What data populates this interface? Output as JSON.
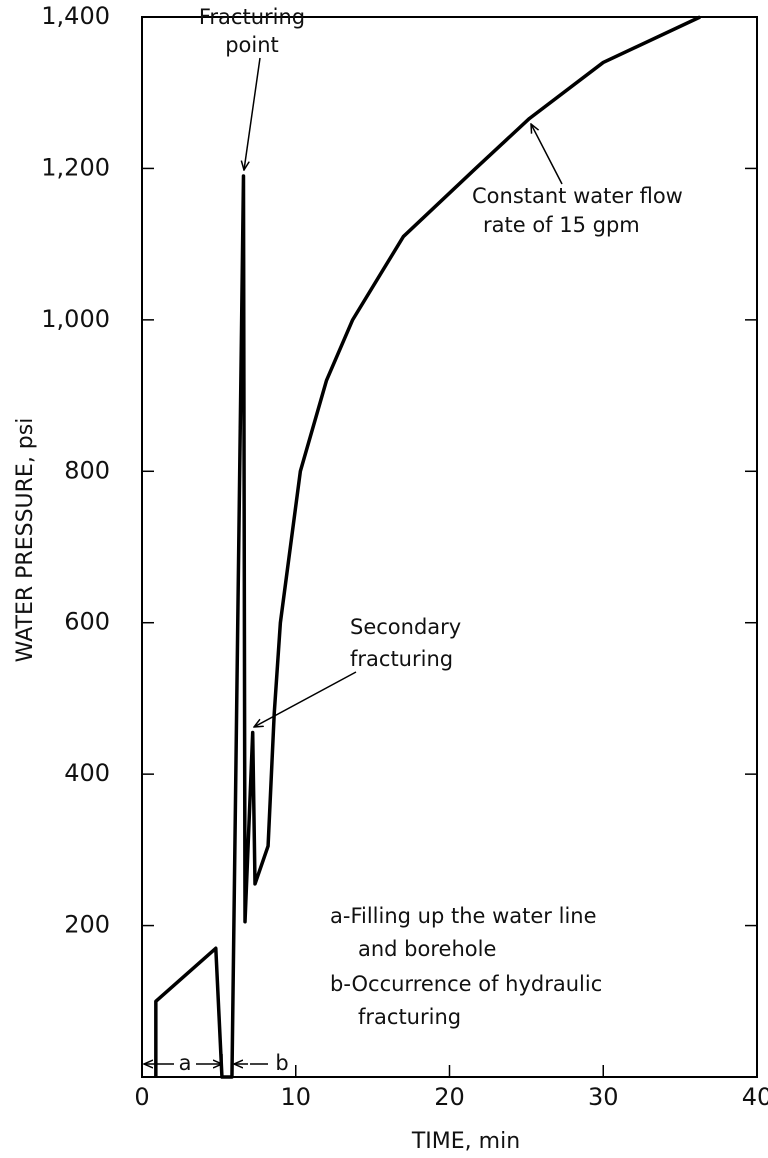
{
  "chart_data": {
    "type": "line",
    "xlabel": "TIME, min",
    "ylabel": "WATER PRESSURE, psi",
    "x": [
      0.9,
      0.9,
      4.8,
      5.2,
      5.85,
      6.6,
      6.7,
      7.2,
      7.35,
      8.2,
      8.6,
      9.0,
      10.3,
      12,
      13.7,
      17,
      21.7,
      25.2,
      30,
      36.3
    ],
    "series": [
      {
        "color": "#000000",
        "values": [
          0,
          100,
          170,
          0,
          0,
          1190,
          205,
          455,
          255,
          305,
          480,
          600,
          800,
          920,
          1000,
          1110,
          1200,
          1266,
          1340,
          1400
        ]
      }
    ],
    "xlim": [
      0,
      40
    ],
    "ylim": [
      0,
      1400
    ],
    "xticks": [
      0,
      10,
      20,
      30,
      40
    ],
    "yticks": [
      200,
      400,
      600,
      800,
      {
        "value": 1000,
        "label": "1,000"
      },
      {
        "value": 1200,
        "label": "1,200"
      },
      {
        "value": 1400,
        "label": "1,400"
      }
    ],
    "annotations": {
      "fracturing_point": [
        "Fracturing",
        "point"
      ],
      "secondary": [
        "Secondary",
        "fracturing"
      ],
      "flow": [
        "Constant water flow",
        "rate of 15 gpm"
      ],
      "a": "a",
      "b": "b",
      "notes": [
        "a-Filling up the water line",
        "and borehole",
        "b-Occurrence of hydraulic",
        "fracturing"
      ]
    }
  }
}
